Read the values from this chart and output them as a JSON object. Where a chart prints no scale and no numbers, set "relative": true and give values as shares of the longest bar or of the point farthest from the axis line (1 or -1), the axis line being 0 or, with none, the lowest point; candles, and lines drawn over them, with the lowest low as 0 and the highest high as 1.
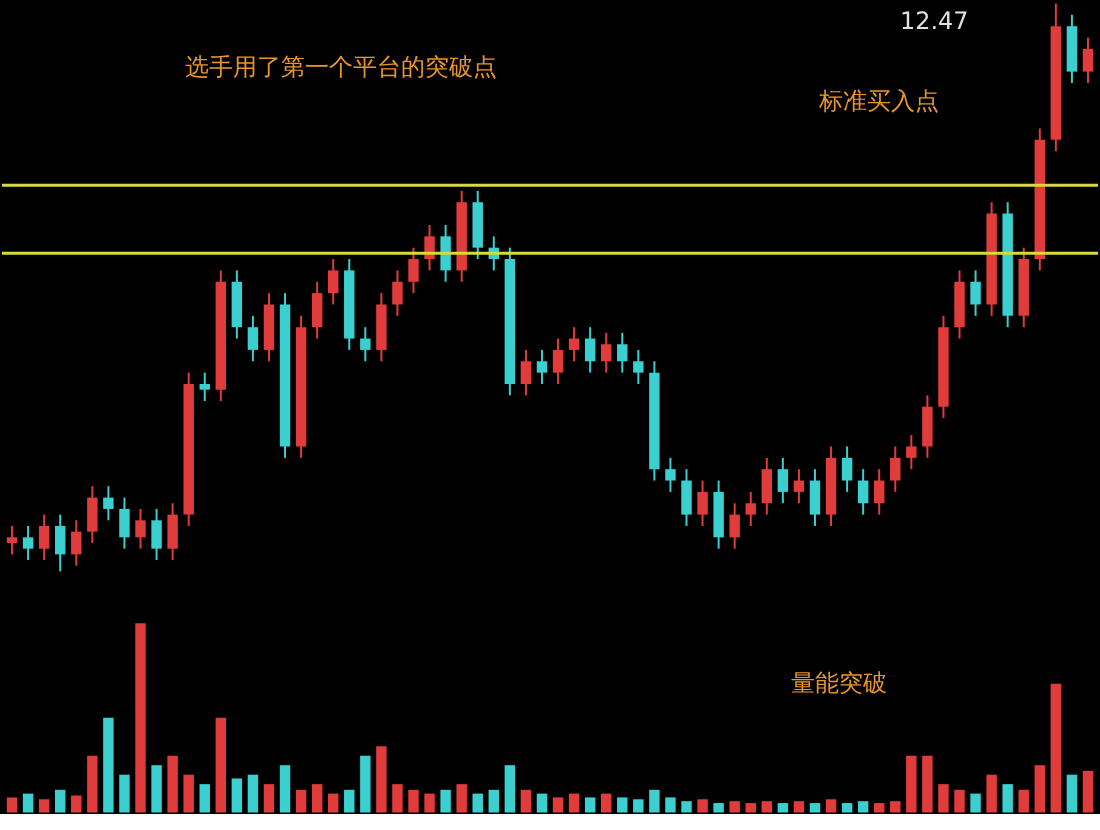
{
  "chart_data": [
    {
      "type": "candlestick",
      "relative": true,
      "categories": [
        null,
        null,
        null,
        null,
        null,
        null,
        null,
        null,
        null,
        null,
        null,
        null,
        null,
        null,
        null,
        null,
        null,
        null,
        null,
        null,
        null,
        null,
        null,
        null,
        null,
        null,
        null,
        null,
        null,
        null,
        null,
        null,
        null,
        null,
        null,
        null,
        null,
        null,
        null,
        null,
        null,
        null,
        null,
        null,
        null,
        null,
        null,
        null,
        null,
        null,
        null,
        null,
        null,
        null,
        null,
        null,
        null,
        null,
        null,
        null,
        null,
        null,
        null,
        null,
        null,
        null,
        null,
        null
      ],
      "ohlc": [
        [
          0.05,
          0.08,
          0.03,
          0.06
        ],
        [
          0.06,
          0.08,
          0.02,
          0.04
        ],
        [
          0.04,
          0.1,
          0.02,
          0.08
        ],
        [
          0.08,
          0.1,
          0.0,
          0.03
        ],
        [
          0.03,
          0.09,
          0.01,
          0.07
        ],
        [
          0.07,
          0.15,
          0.05,
          0.13
        ],
        [
          0.13,
          0.15,
          0.09,
          0.11
        ],
        [
          0.11,
          0.13,
          0.04,
          0.06
        ],
        [
          0.06,
          0.11,
          0.04,
          0.09
        ],
        [
          0.09,
          0.11,
          0.02,
          0.04
        ],
        [
          0.04,
          0.12,
          0.02,
          0.1
        ],
        [
          0.1,
          0.35,
          0.08,
          0.33
        ],
        [
          0.33,
          0.35,
          0.3,
          0.32
        ],
        [
          0.32,
          0.53,
          0.3,
          0.51
        ],
        [
          0.51,
          0.53,
          0.41,
          0.43
        ],
        [
          0.43,
          0.45,
          0.37,
          0.39
        ],
        [
          0.39,
          0.49,
          0.37,
          0.47
        ],
        [
          0.47,
          0.49,
          0.2,
          0.22
        ],
        [
          0.22,
          0.45,
          0.2,
          0.43
        ],
        [
          0.43,
          0.51,
          0.41,
          0.49
        ],
        [
          0.49,
          0.55,
          0.47,
          0.53
        ],
        [
          0.53,
          0.55,
          0.39,
          0.41
        ],
        [
          0.41,
          0.43,
          0.37,
          0.39
        ],
        [
          0.39,
          0.49,
          0.37,
          0.47
        ],
        [
          0.47,
          0.53,
          0.45,
          0.51
        ],
        [
          0.51,
          0.57,
          0.49,
          0.55
        ],
        [
          0.55,
          0.61,
          0.53,
          0.59
        ],
        [
          0.59,
          0.61,
          0.51,
          0.53
        ],
        [
          0.53,
          0.67,
          0.51,
          0.65
        ],
        [
          0.65,
          0.67,
          0.55,
          0.57
        ],
        [
          0.57,
          0.59,
          0.53,
          0.55
        ],
        [
          0.55,
          0.57,
          0.31,
          0.33
        ],
        [
          0.33,
          0.39,
          0.31,
          0.37
        ],
        [
          0.37,
          0.39,
          0.33,
          0.35
        ],
        [
          0.35,
          0.41,
          0.33,
          0.39
        ],
        [
          0.39,
          0.43,
          0.37,
          0.41
        ],
        [
          0.41,
          0.43,
          0.35,
          0.37
        ],
        [
          0.37,
          0.42,
          0.35,
          0.4
        ],
        [
          0.4,
          0.42,
          0.35,
          0.37
        ],
        [
          0.37,
          0.39,
          0.33,
          0.35
        ],
        [
          0.35,
          0.37,
          0.16,
          0.18
        ],
        [
          0.18,
          0.2,
          0.14,
          0.16
        ],
        [
          0.16,
          0.18,
          0.08,
          0.1
        ],
        [
          0.1,
          0.16,
          0.08,
          0.14
        ],
        [
          0.14,
          0.16,
          0.04,
          0.06
        ],
        [
          0.06,
          0.12,
          0.04,
          0.1
        ],
        [
          0.1,
          0.14,
          0.08,
          0.12
        ],
        [
          0.12,
          0.2,
          0.1,
          0.18
        ],
        [
          0.18,
          0.2,
          0.12,
          0.14
        ],
        [
          0.14,
          0.18,
          0.12,
          0.16
        ],
        [
          0.16,
          0.18,
          0.08,
          0.1
        ],
        [
          0.1,
          0.22,
          0.08,
          0.2
        ],
        [
          0.2,
          0.22,
          0.14,
          0.16
        ],
        [
          0.16,
          0.18,
          0.1,
          0.12
        ],
        [
          0.12,
          0.18,
          0.1,
          0.16
        ],
        [
          0.16,
          0.22,
          0.14,
          0.2
        ],
        [
          0.2,
          0.24,
          0.18,
          0.22
        ],
        [
          0.22,
          0.31,
          0.2,
          0.29
        ],
        [
          0.29,
          0.45,
          0.27,
          0.43
        ],
        [
          0.43,
          0.53,
          0.41,
          0.51
        ],
        [
          0.51,
          0.53,
          0.45,
          0.47
        ],
        [
          0.47,
          0.65,
          0.45,
          0.63
        ],
        [
          0.63,
          0.65,
          0.43,
          0.45
        ],
        [
          0.45,
          0.57,
          0.43,
          0.55
        ],
        [
          0.55,
          0.78,
          0.53,
          0.76
        ],
        [
          0.76,
          1.0,
          0.74,
          0.96
        ],
        [
          0.96,
          0.98,
          0.86,
          0.88
        ],
        [
          0.88,
          0.94,
          0.86,
          0.92
        ]
      ],
      "ref_lines": [
        {
          "axis": "y",
          "value": 0.68,
          "color": "#d8d840"
        },
        {
          "axis": "y",
          "value": 0.56,
          "color": "#d8d840"
        }
      ],
      "annotations": [
        "12.47",
        "选手用了第一个平台的突破点",
        "标准买入点"
      ]
    },
    {
      "type": "bar",
      "relative": true,
      "categories": [
        null,
        null,
        null,
        null,
        null,
        null,
        null,
        null,
        null,
        null,
        null,
        null,
        null,
        null,
        null,
        null,
        null,
        null,
        null,
        null,
        null,
        null,
        null,
        null,
        null,
        null,
        null,
        null,
        null,
        null,
        null,
        null,
        null,
        null,
        null,
        null,
        null,
        null,
        null,
        null,
        null,
        null,
        null,
        null,
        null,
        null,
        null,
        null,
        null,
        null,
        null,
        null,
        null,
        null,
        null,
        null,
        null,
        null,
        null,
        null,
        null,
        null,
        null,
        null,
        null,
        null,
        null,
        null
      ],
      "values": [
        0.08,
        0.1,
        0.07,
        0.12,
        0.09,
        0.3,
        0.5,
        0.2,
        1.0,
        0.25,
        0.3,
        0.2,
        0.15,
        0.5,
        0.18,
        0.2,
        0.15,
        0.25,
        0.12,
        0.15,
        0.1,
        0.12,
        0.3,
        0.35,
        0.15,
        0.12,
        0.1,
        0.12,
        0.15,
        0.1,
        0.12,
        0.25,
        0.12,
        0.1,
        0.08,
        0.1,
        0.08,
        0.1,
        0.08,
        0.07,
        0.12,
        0.08,
        0.06,
        0.07,
        0.05,
        0.06,
        0.05,
        0.06,
        0.05,
        0.06,
        0.05,
        0.07,
        0.05,
        0.06,
        0.05,
        0.06,
        0.3,
        0.3,
        0.15,
        0.12,
        0.1,
        0.2,
        0.15,
        0.12,
        0.25,
        0.68,
        0.2,
        0.22
      ],
      "colors": [
        "#e03c3c",
        "#3ccfcf",
        "#e03c3c",
        "#3ccfcf",
        "#e03c3c",
        "#e03c3c",
        "#3ccfcf",
        "#3ccfcf",
        "#e03c3c",
        "#3ccfcf",
        "#e03c3c",
        "#e03c3c",
        "#3ccfcf",
        "#e03c3c",
        "#3ccfcf",
        "#3ccfcf",
        "#e03c3c",
        "#3ccfcf",
        "#e03c3c",
        "#e03c3c",
        "#e03c3c",
        "#3ccfcf",
        "#3ccfcf",
        "#e03c3c",
        "#e03c3c",
        "#e03c3c",
        "#e03c3c",
        "#3ccfcf",
        "#e03c3c",
        "#3ccfcf",
        "#3ccfcf",
        "#3ccfcf",
        "#e03c3c",
        "#3ccfcf",
        "#e03c3c",
        "#e03c3c",
        "#3ccfcf",
        "#e03c3c",
        "#3ccfcf",
        "#3ccfcf",
        "#3ccfcf",
        "#3ccfcf",
        "#3ccfcf",
        "#e03c3c",
        "#3ccfcf",
        "#e03c3c",
        "#e03c3c",
        "#e03c3c",
        "#3ccfcf",
        "#e03c3c",
        "#3ccfcf",
        "#e03c3c",
        "#3ccfcf",
        "#3ccfcf",
        "#e03c3c",
        "#e03c3c",
        "#e03c3c",
        "#e03c3c",
        "#e03c3c",
        "#e03c3c",
        "#3ccfcf",
        "#e03c3c",
        "#3ccfcf",
        "#e03c3c",
        "#e03c3c",
        "#e03c3c",
        "#3ccfcf",
        "#e03c3c"
      ],
      "annotations": [
        "量能突破"
      ]
    }
  ]
}
